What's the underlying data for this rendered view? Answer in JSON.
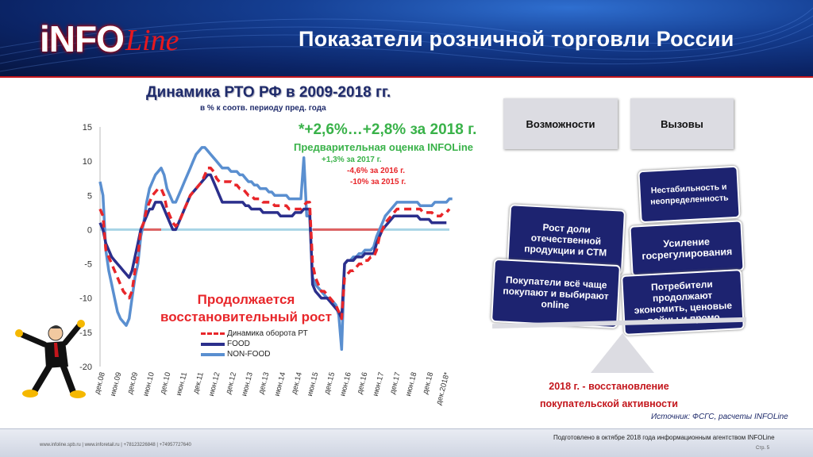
{
  "header": {
    "logo_main": "iNFO",
    "logo_script": "Line",
    "title": "Показатели розничной торговли России"
  },
  "colors": {
    "accent_red": "#c3161c",
    "navy": "#1d2370",
    "chart_total": "#e8262a",
    "chart_food": "#2b2f8c",
    "chart_nonfood": "#5a8fd0",
    "green": "#39b249"
  },
  "chart_data": {
    "type": "line",
    "title": "Динамика РТО РФ в 2009-2018 гг.",
    "subtitle": "в % к соотв. периоду пред. года",
    "ylim": [
      -20,
      15
    ],
    "yticks": [
      "15",
      "10",
      "5",
      "0",
      "-5",
      "-10",
      "-15",
      "-20"
    ],
    "xticks": [
      "дек.08",
      "июн.09",
      "дек.09",
      "июн.10",
      "дек.10",
      "июн.11",
      "дек.11",
      "июн.12",
      "дек.12",
      "июн.13",
      "дек.13",
      "июн.14",
      "дек.14",
      "июн.15",
      "дек.15",
      "июн.16",
      "дек.16",
      "июн.17",
      "дек.17",
      "июн.18",
      "дек.18",
      "дек.2018*"
    ],
    "x_note": "monthly, Dec 2008 - Dec 2018, values estimated from chart",
    "series": [
      {
        "name": "Динамика оборота РТ",
        "style": "dashed",
        "color": "#e8262a",
        "values": [
          3,
          2,
          -3,
          -4,
          -5,
          -6,
          -7,
          -8,
          -9,
          -9.5,
          -10,
          -9,
          -6,
          -4,
          0,
          1,
          3,
          4,
          5,
          5.5,
          6,
          6,
          5,
          3,
          2,
          1,
          0.5,
          1,
          2,
          3,
          4,
          5,
          5.5,
          6,
          6.5,
          7,
          8,
          9,
          9,
          8.5,
          7.5,
          7,
          7,
          7,
          7,
          7,
          6.5,
          6.5,
          6,
          6,
          5.5,
          5,
          5,
          4.5,
          4.5,
          4.5,
          4,
          4,
          4,
          4,
          3.5,
          3.5,
          3.5,
          3.5,
          3.5,
          3,
          3,
          3,
          3,
          3,
          3.5,
          4,
          4,
          -5,
          -7,
          -8,
          -9,
          -9,
          -9.5,
          -10,
          -10.5,
          -11,
          -12,
          -13,
          -7,
          -6.5,
          -6,
          -6,
          -5.5,
          -5,
          -5,
          -4.5,
          -4.5,
          -4,
          -4,
          -3,
          -1,
          0,
          1,
          1.5,
          2,
          2.5,
          3,
          3,
          3,
          3,
          3,
          3,
          3,
          3,
          3,
          2.5,
          2.5,
          2.5,
          2.5,
          2,
          2,
          2,
          2.5,
          2.5,
          3
        ]
      },
      {
        "name": "FOOD",
        "style": "solid",
        "color": "#2b2f8c",
        "values": [
          1,
          0,
          -2,
          -3,
          -4,
          -4.5,
          -5,
          -5.5,
          -6,
          -6.5,
          -7,
          -6,
          -4,
          -2,
          0,
          1,
          2,
          3,
          3,
          4,
          4,
          4,
          3,
          2,
          1,
          0,
          0,
          1,
          2,
          3,
          4,
          5,
          5.5,
          6,
          6.5,
          7,
          7.5,
          8,
          8,
          7,
          6,
          5,
          4,
          4,
          4,
          4,
          4,
          4,
          4,
          4,
          3.5,
          3.5,
          3,
          3,
          3,
          3,
          2.5,
          2.5,
          2.5,
          2.5,
          2.5,
          2.5,
          2,
          2,
          2,
          2,
          2,
          2.5,
          2.5,
          2.5,
          3,
          3,
          3,
          -8,
          -9,
          -9.5,
          -10,
          -10,
          -10,
          -10.5,
          -11,
          -11.5,
          -12,
          -13,
          -5,
          -4.5,
          -4.5,
          -4.5,
          -4,
          -4,
          -4,
          -3.5,
          -3.5,
          -3.5,
          -3.5,
          -2,
          -1,
          0,
          0.5,
          1,
          1.5,
          2,
          2,
          2,
          2,
          2,
          2,
          2,
          2,
          2,
          1.5,
          1.5,
          1.5,
          1.5,
          1,
          1,
          1,
          1,
          1,
          1
        ]
      },
      {
        "name": "NON-FOOD",
        "style": "solid",
        "color": "#5a8fd0",
        "values": [
          7,
          5,
          -3,
          -6,
          -8,
          -10,
          -12,
          -13,
          -13.5,
          -14,
          -13,
          -10,
          -7,
          -5,
          -1,
          1,
          4,
          6,
          7,
          8,
          8.5,
          9,
          8,
          6,
          5,
          4,
          4,
          5,
          6,
          7,
          8,
          9,
          10,
          11,
          11.5,
          12,
          12,
          11.5,
          11,
          10.5,
          10,
          9.5,
          9,
          9,
          9,
          8.5,
          8.5,
          8.5,
          8,
          8,
          7.5,
          7,
          7,
          6.5,
          6.5,
          6,
          6,
          6,
          5.5,
          5.5,
          5,
          5,
          5,
          5,
          5,
          4.5,
          4.5,
          4.5,
          4.5,
          4.5,
          10.5,
          2,
          2,
          -7,
          -8,
          -8.5,
          -9,
          -9.5,
          -10,
          -10,
          -10.5,
          -11,
          -12.5,
          -17.5,
          -5,
          -4.5,
          -4.5,
          -4,
          -4,
          -3.5,
          -3.5,
          -3,
          -3,
          -3,
          -2.5,
          -1,
          0,
          1,
          2,
          2.5,
          3,
          3.5,
          4,
          4,
          4,
          4,
          4,
          4,
          4,
          4,
          3.5,
          3.5,
          3.5,
          3.5,
          3.5,
          4,
          4,
          4,
          4,
          4,
          4.5,
          4.5
        ]
      }
    ],
    "legend_position": "bottom-center",
    "annotations": {
      "main": "*+2,6%…+2,8% за 2018 г.",
      "prelim": "Предварительная оценка INFOLine",
      "y2017": "+1,3% за 2017 г.",
      "y2016": "-4,6% за 2016 г.",
      "y2015": "-10% за 2015 г.",
      "recovery_line1": "Продолжается",
      "recovery_line2": "восстановительный рост"
    }
  },
  "scales": {
    "opportunities_label": "Возможности",
    "challenges_label": "Вызовы",
    "opportunities": [
      "Рост доли отечественной продукции и СТМ",
      "Покупатели всё чаще покупают и выбирают online"
    ],
    "challenges": [
      "Нестабильность и неопределенность",
      "Усиление госрегулирования",
      "Потребители продолжают экономить, ценовые войны и промо"
    ]
  },
  "conclusion": {
    "line1": "2018 г.  - восстановление",
    "line2": "покупательской активности"
  },
  "source": "Источник: ФСГС, расчеты INFOLine",
  "footer": {
    "contacts": "www.infoline.spb.ru  |  www.inforetail.ru  |  +78123226848  |  +74957727640",
    "prepared": "Подготовлено в октябре 2018 года информационным агентством INFOLine",
    "page": "Стр. 5"
  }
}
